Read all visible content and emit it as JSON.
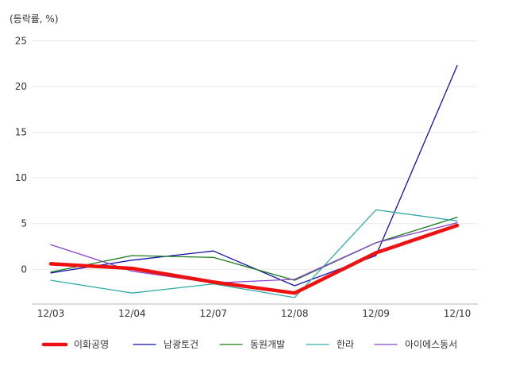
{
  "chart_data": {
    "type": "line",
    "title": "",
    "unit_label": "(등락률, %)",
    "xlabel": "",
    "ylabel": "",
    "categories": [
      "12/03",
      "12/04",
      "12/07",
      "12/08",
      "12/09",
      "12/10"
    ],
    "ylim": [
      -3.8,
      26.0
    ],
    "yticks": [
      0,
      5,
      10,
      15,
      20,
      25
    ],
    "grid": true,
    "legend_position": "bottom",
    "series": [
      {
        "name": "이화공영",
        "color": "#ee1111",
        "values": [
          0.6,
          0.1,
          -1.4,
          -2.6,
          1.8,
          4.8
        ]
      },
      {
        "name": "남광토건",
        "color": "#1111aa",
        "values": [
          -0.4,
          1.0,
          2.0,
          -1.8,
          1.5,
          22.3
        ]
      },
      {
        "name": "동원개발",
        "color": "#1a7a1a",
        "values": [
          -0.3,
          1.5,
          1.3,
          -1.2,
          2.9,
          5.7
        ]
      },
      {
        "name": "한라",
        "color": "#33aaaa",
        "values": [
          -1.2,
          -2.6,
          -1.6,
          -3.1,
          6.5,
          5.3
        ]
      },
      {
        "name": "아이에스동서",
        "color": "#8844cc",
        "values": [
          2.7,
          -0.2,
          -1.5,
          -1.1,
          2.9,
          5.1
        ]
      }
    ]
  }
}
